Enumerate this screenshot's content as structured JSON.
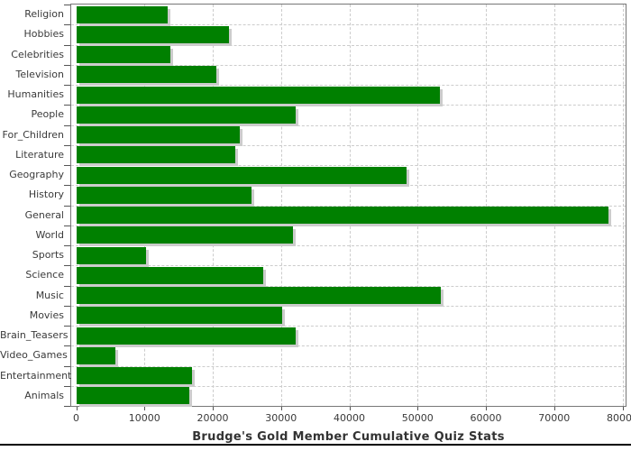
{
  "chart_data": {
    "type": "bar",
    "orientation": "horizontal",
    "title": "Brudge's Gold Member Cumulative Quiz Stats",
    "categories": [
      "Religion",
      "Hobbies",
      "Celebrities",
      "Television",
      "Humanities",
      "People",
      "For_Children",
      "Literature",
      "Geography",
      "History",
      "General",
      "World",
      "Sports",
      "Science",
      "Music",
      "Movies",
      "Brain_Teasers",
      "Video_Games",
      "Entertainment",
      "Animals"
    ],
    "values": [
      13400,
      22400,
      13800,
      20500,
      53300,
      32100,
      23900,
      23300,
      48400,
      25700,
      78000,
      31700,
      10200,
      27400,
      53400,
      30200,
      32200,
      5700,
      17000,
      16600
    ],
    "xlabel": "",
    "ylabel": "",
    "xlim": [
      0,
      80000
    ],
    "x_tick_labels": [
      "0",
      "10000",
      "20000",
      "30000",
      "40000",
      "50000",
      "60000",
      "70000",
      "80000"
    ],
    "x_tick_step": 10000,
    "grid": "dashed",
    "legend": "none",
    "colors": {
      "bar_fill": "#008000",
      "bar_shadow": "#cccccc",
      "gridline": "#cccccc",
      "plot_border": "#777777",
      "tick_mark": "#555555",
      "tick_text": "#3a3a3a",
      "title_text": "#333333",
      "background": "#ffffff",
      "bottom_rule": "#000000"
    }
  }
}
